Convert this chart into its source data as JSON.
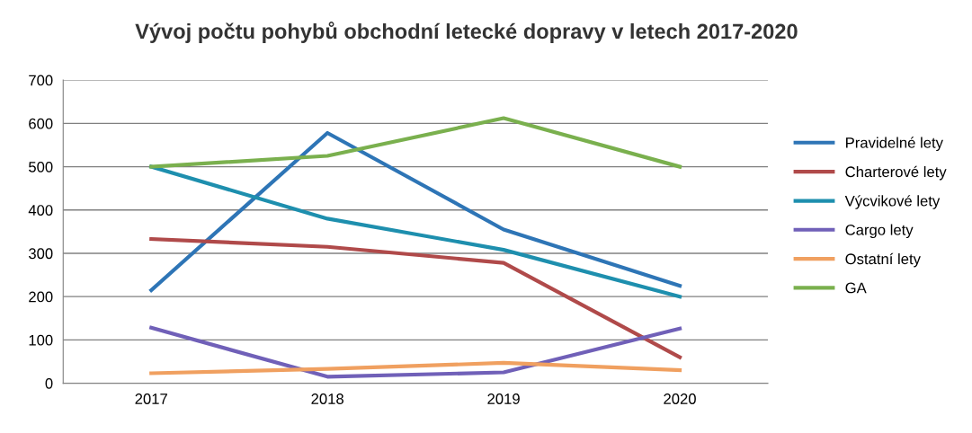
{
  "chart_data": {
    "type": "line",
    "title": "Vývoj počtu pohybů obchodní letecké dopravy v letech 2017-2020",
    "categories": [
      "2017",
      "2018",
      "2019",
      "2020"
    ],
    "series": [
      {
        "name": "Pravidelné lety",
        "color": "#2e75b6",
        "values": [
          215,
          578,
          355,
          225
        ]
      },
      {
        "name": "Charterové lety",
        "color": "#b04a4a",
        "values": [
          333,
          315,
          278,
          60
        ]
      },
      {
        "name": "Výcvikové lety",
        "color": "#1e8fae",
        "values": [
          500,
          380,
          308,
          200
        ]
      },
      {
        "name": "Cargo lety",
        "color": "#7060b8",
        "values": [
          128,
          15,
          25,
          126
        ]
      },
      {
        "name": "Ostatní lety",
        "color": "#f0a060",
        "values": [
          23,
          33,
          47,
          30
        ]
      },
      {
        "name": "GA",
        "color": "#7ab04e",
        "values": [
          500,
          525,
          612,
          500
        ]
      }
    ],
    "ylim": [
      0,
      700
    ],
    "yticks": [
      0,
      100,
      200,
      300,
      400,
      500,
      600,
      700
    ],
    "grid": "y",
    "legend": "right",
    "marker": "none",
    "line_style": "solid"
  }
}
